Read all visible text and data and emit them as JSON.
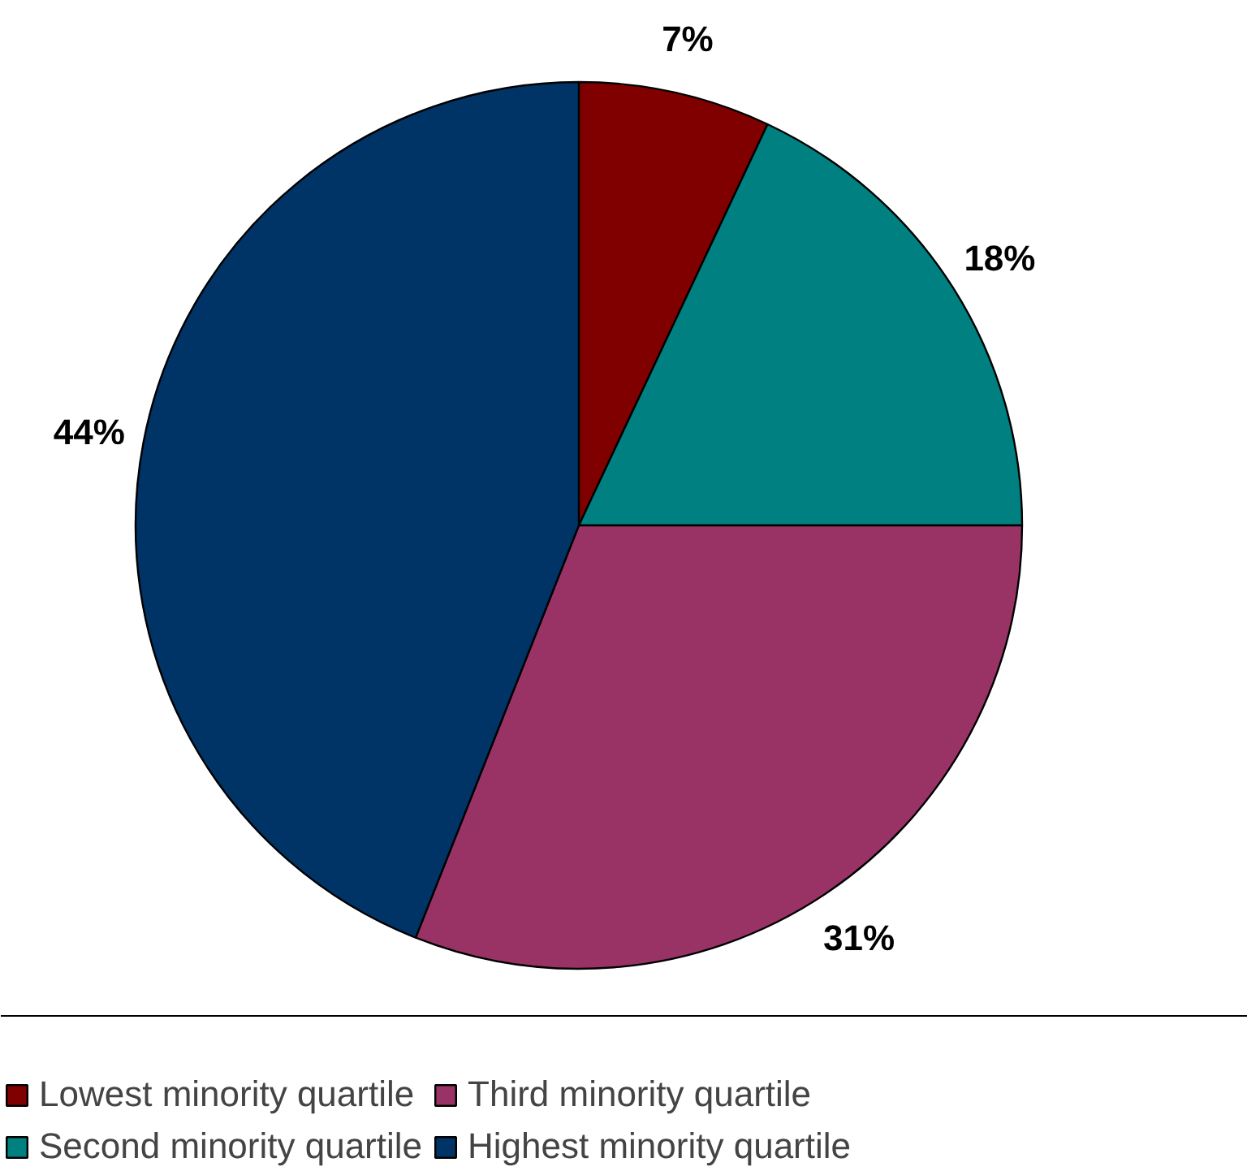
{
  "chart_data": {
    "type": "pie",
    "categories": [
      "Lowest minority quartile",
      "Second minority quartile",
      "Third minority quartile",
      "Highest minority quartile"
    ],
    "values": [
      7,
      18,
      31,
      44
    ],
    "colors": [
      "#800000",
      "#008080",
      "#993366",
      "#003366"
    ],
    "value_labels": [
      "7%",
      "18%",
      "31%",
      "44%"
    ],
    "legend": "bottom"
  }
}
